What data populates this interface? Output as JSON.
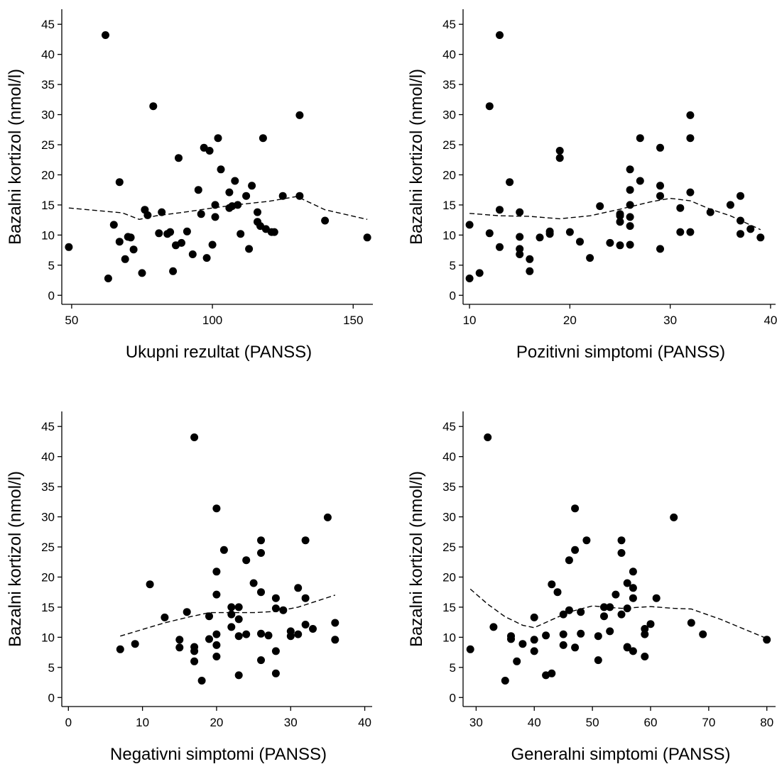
{
  "chart_data": [
    {
      "type": "scatter",
      "xlabel": "Ukupni rezultat (PANSS)",
      "ylabel": "Bazalni kortizol (nmol/l)",
      "xlim": [
        47,
        157
      ],
      "ylim": [
        -1.5,
        47.5
      ],
      "xticks": [
        50,
        100,
        150
      ],
      "yticks": [
        0,
        5,
        10,
        15,
        20,
        25,
        30,
        35,
        40,
        45
      ],
      "x": [
        49,
        62,
        63,
        65,
        67,
        67,
        69,
        70,
        71,
        72,
        75,
        76,
        77,
        79,
        81,
        82,
        84,
        85,
        86,
        87,
        88,
        89,
        91,
        93,
        95,
        96,
        97,
        98,
        99,
        100,
        101,
        101,
        102,
        103,
        106,
        106,
        107,
        108,
        109,
        110,
        112,
        113,
        114,
        116,
        116,
        117,
        118,
        119,
        121,
        122,
        125,
        131,
        131,
        140,
        155
      ],
      "y": [
        8,
        43.2,
        2.8,
        11.7,
        18.8,
        8.9,
        6,
        9.7,
        9.6,
        7.6,
        3.7,
        14.2,
        13.3,
        31.4,
        10.3,
        13.8,
        10.2,
        10.5,
        4,
        8.3,
        22.8,
        8.7,
        10.6,
        6.8,
        17.5,
        13.5,
        24.5,
        6.2,
        24,
        8.4,
        15,
        13,
        26.1,
        20.9,
        14.5,
        17.1,
        14.8,
        19,
        15,
        10.2,
        16.5,
        7.7,
        18.2,
        13.8,
        12.2,
        11.5,
        26.1,
        11,
        10.5,
        10.5,
        16.5,
        29.9,
        16.5,
        12.4,
        9.6
      ],
      "fit_line": {
        "x": [
          49,
          68,
          74,
          80,
          90,
          100,
          110,
          120,
          130,
          140,
          155
        ],
        "y": [
          14.5,
          13.7,
          12.6,
          13.2,
          13.8,
          14.5,
          15.1,
          15.6,
          16.4,
          14.2,
          12.6
        ]
      }
    },
    {
      "type": "scatter",
      "xlabel": "Pozitivni simptomi (PANSS)",
      "ylabel": "Bazalni kortizol (nmol/l)",
      "xlim": [
        9.5,
        40.5
      ],
      "ylim": [
        -1.5,
        47.5
      ],
      "xticks": [
        10,
        20,
        30,
        40
      ],
      "yticks": [
        0,
        5,
        10,
        15,
        20,
        25,
        30,
        35,
        40,
        45
      ],
      "x": [
        10,
        10,
        11,
        12,
        12,
        13,
        13,
        13,
        14,
        15,
        15,
        15,
        15,
        16,
        16,
        17,
        18,
        18,
        19,
        19,
        20,
        21,
        22,
        23,
        24,
        25,
        25,
        25,
        25,
        26,
        26,
        26,
        26,
        26,
        26,
        27,
        27,
        29,
        29,
        29,
        29,
        31,
        31,
        32,
        32,
        32,
        32,
        34,
        36,
        37,
        37,
        37,
        38,
        39
      ],
      "y": [
        2.8,
        11.7,
        3.7,
        31.4,
        10.3,
        43.2,
        14.2,
        8,
        18.8,
        13.8,
        9.7,
        7.7,
        6.8,
        6,
        4,
        9.6,
        10.6,
        10.2,
        24,
        22.8,
        10.5,
        8.9,
        6.2,
        14.8,
        8.7,
        13.5,
        13.2,
        12.2,
        8.3,
        20.9,
        17.5,
        15,
        13,
        11.5,
        8.4,
        26.1,
        19,
        24.5,
        18.2,
        16.5,
        7.7,
        14.5,
        10.5,
        29.9,
        26.1,
        17.1,
        10.5,
        13.8,
        15,
        16.5,
        12.4,
        10.2,
        11,
        9.6
      ],
      "fit_line": {
        "x": [
          10,
          13,
          16,
          19,
          22,
          25,
          28,
          30,
          32,
          34,
          36,
          39
        ],
        "y": [
          13.6,
          13.2,
          13.1,
          12.7,
          13.2,
          14.3,
          15.5,
          16.1,
          15.7,
          14.3,
          13.2,
          10.9
        ]
      }
    },
    {
      "type": "scatter",
      "xlabel": "Negativni simptomi (PANSS)",
      "ylabel": "Bazalni kortizol (nmol/l)",
      "xlim": [
        -0.7,
        41
      ],
      "ylim": [
        -1.5,
        47.5
      ],
      "xticks": [
        0,
        10,
        20,
        30,
        40
      ],
      "yticks": [
        0,
        5,
        10,
        15,
        20,
        25,
        30,
        35,
        40,
        45
      ],
      "x": [
        7,
        9,
        11,
        13,
        15,
        15,
        16,
        17,
        17,
        17,
        17,
        18,
        19,
        19,
        20,
        20,
        20,
        20,
        20,
        20,
        21,
        22,
        22,
        22,
        23,
        23,
        23,
        23,
        24,
        24,
        25,
        26,
        26,
        26,
        26,
        26,
        27,
        28,
        28,
        28,
        28,
        29,
        30,
        30,
        31,
        31,
        32,
        32,
        32,
        33,
        35,
        36,
        36
      ],
      "y": [
        8,
        8.9,
        18.8,
        13.3,
        9.6,
        8.3,
        14.2,
        43.2,
        7.7,
        8.4,
        6,
        2.8,
        13.5,
        9.7,
        31.4,
        20.9,
        17.1,
        10.5,
        8.7,
        6.8,
        24.5,
        15,
        13.8,
        11.7,
        15,
        13,
        10.2,
        3.7,
        22.8,
        10.5,
        19,
        26.1,
        24,
        17.5,
        10.6,
        6.2,
        10.3,
        16.5,
        14.8,
        7.7,
        4,
        14.5,
        11,
        10.2,
        18.2,
        10.5,
        26.1,
        16.5,
        12.1,
        11.4,
        29.9,
        12.4,
        9.6
      ],
      "fit_line": {
        "x": [
          7,
          10,
          13,
          16,
          19,
          22,
          25,
          28,
          31,
          34,
          36
        ],
        "y": [
          10.2,
          11.3,
          12.4,
          13.3,
          14.1,
          14.1,
          14.1,
          14.3,
          15,
          16.2,
          17
        ]
      }
    },
    {
      "type": "scatter",
      "xlabel": "Generalni simptomi (PANSS)",
      "ylabel": "Bazalni kortizol (nmol/l)",
      "xlim": [
        28,
        81.5
      ],
      "ylim": [
        -1.5,
        47.5
      ],
      "xticks": [
        30,
        40,
        50,
        60,
        70,
        80
      ],
      "yticks": [
        0,
        5,
        10,
        15,
        20,
        25,
        30,
        35,
        40,
        45
      ],
      "x": [
        29,
        32,
        33,
        35,
        36,
        36,
        37,
        38,
        40,
        40,
        40,
        42,
        42,
        43,
        43,
        44,
        45,
        45,
        45,
        46,
        46,
        47,
        47,
        47,
        48,
        48,
        49,
        51,
        51,
        52,
        52,
        53,
        53,
        54,
        55,
        55,
        55,
        56,
        56,
        56,
        56,
        57,
        57,
        57,
        57,
        59,
        59,
        59,
        60,
        61,
        64,
        67,
        69,
        80
      ],
      "y": [
        8,
        43.2,
        11.7,
        2.8,
        10.2,
        9.7,
        6,
        8.9,
        13.3,
        9.6,
        7.7,
        10.3,
        3.7,
        18.8,
        4,
        17.5,
        13.8,
        10.5,
        8.7,
        22.8,
        14.5,
        31.4,
        24.5,
        8.3,
        14.2,
        10.6,
        26.1,
        10.2,
        6.2,
        15,
        13.5,
        15,
        11,
        17.1,
        26.1,
        24,
        13.8,
        19,
        14.8,
        8.4,
        8.3,
        20.9,
        18.2,
        16.5,
        7.7,
        11.4,
        10.5,
        6.8,
        12.2,
        16.5,
        29.9,
        12.4,
        10.5,
        9.6
      ],
      "fit_line": {
        "x": [
          29,
          32,
          35,
          38,
          40,
          43,
          46,
          50,
          55,
          60,
          64,
          67,
          72,
          80
        ],
        "y": [
          18,
          15.5,
          13.4,
          12,
          11.6,
          12.9,
          14.2,
          15.2,
          14.8,
          15.1,
          14.8,
          14.7,
          13,
          9.8
        ]
      }
    }
  ]
}
